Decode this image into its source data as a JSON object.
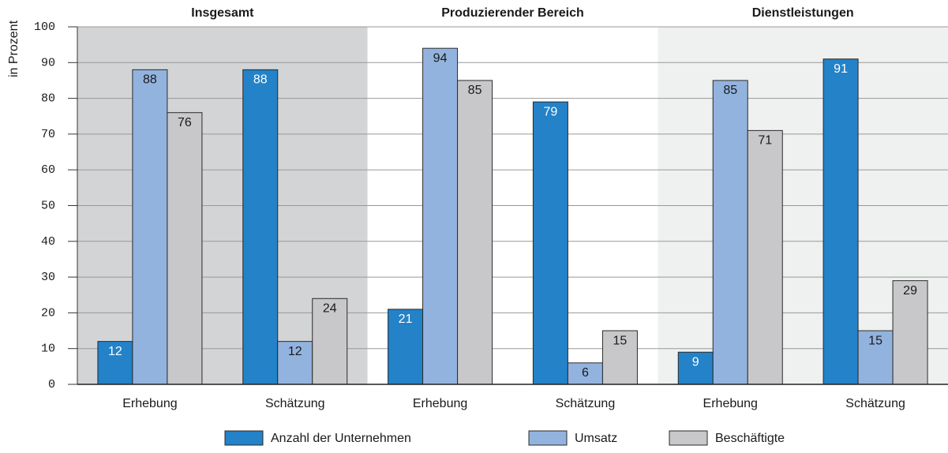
{
  "chart_data": {
    "type": "bar",
    "y_label": "in Prozent",
    "panels": [
      {
        "title": "Insgesamt",
        "color": "#d3d4d6"
      },
      {
        "title": "Produzierender Bereich",
        "color": "#ffffff"
      },
      {
        "title": "Dienstleistungen",
        "color": "#eef1ef"
      }
    ],
    "categories": [
      "Erhebung",
      "Schätzung",
      "Erhebung",
      "Schätzung",
      "Erhebung",
      "Schätzung"
    ],
    "series": [
      {
        "name": "Anzahl der Unternehmen",
        "color": "#2382c8",
        "label_color": "#ffffff",
        "values": [
          12,
          88,
          21,
          79,
          9,
          91
        ]
      },
      {
        "name": "Umsatz",
        "color": "#93b3df",
        "label_color": "#1a1a1a",
        "values": [
          88,
          12,
          94,
          6,
          85,
          15
        ]
      },
      {
        "name": "Beschäftigte",
        "color": "#c8c8ca",
        "label_color": "#1a1a1a",
        "values": [
          76,
          24,
          85,
          15,
          71,
          29
        ]
      }
    ],
    "ylim": [
      0,
      100
    ],
    "yticks": [
      0,
      10,
      20,
      30,
      40,
      50,
      60,
      70,
      80,
      90,
      100
    ],
    "grid": true
  }
}
